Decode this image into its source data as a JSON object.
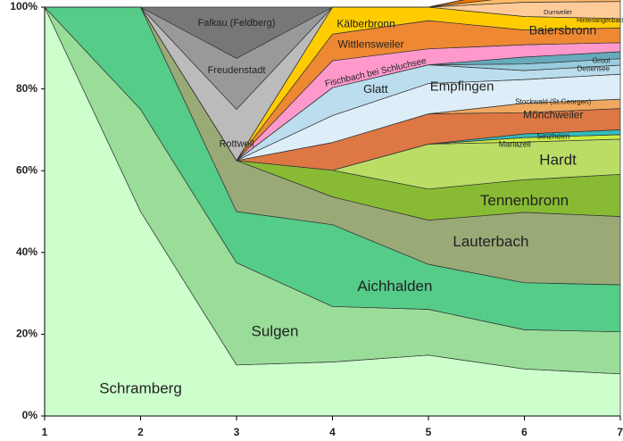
{
  "chart_data": {
    "type": "area",
    "stacked": true,
    "percent": true,
    "x": [
      1,
      2,
      3,
      4,
      5,
      6,
      7
    ],
    "ylim": [
      0,
      100
    ],
    "yticks": [
      "0%",
      "20%",
      "40%",
      "60%",
      "80%",
      "100%"
    ],
    "xticks": [
      "1",
      "2",
      "3",
      "4",
      "5",
      "6",
      "7"
    ],
    "grid": false,
    "legend": "none",
    "series": [
      {
        "name": "Schramberg",
        "color": "#ccffcc",
        "values": [
          100,
          50,
          12.5,
          13.2,
          14.9,
          11.5,
          10.3
        ]
      },
      {
        "name": "Sulgen",
        "color": "#99dd99",
        "values": [
          0,
          25,
          25,
          13.6,
          11.2,
          9.6,
          10.3
        ]
      },
      {
        "name": "Aichhalden",
        "color": "#55cc88",
        "values": [
          0,
          25,
          12.5,
          20.0,
          11.0,
          11.5,
          11.5
        ]
      },
      {
        "name": "Lauterbach",
        "color": "#99aa77",
        "values": [
          0,
          0,
          12.5,
          6.8,
          10.8,
          17.2,
          16.7
        ]
      },
      {
        "name": "Tennenbronn",
        "color": "#88bb33",
        "values": [
          0,
          0,
          0,
          6.5,
          7.6,
          8.0,
          10.3
        ]
      },
      {
        "name": "Hardt",
        "color": "#bbdd66",
        "values": [
          0,
          0,
          0,
          0,
          11.0,
          9.2,
          8.6
        ]
      },
      {
        "name": "Mariazell",
        "color": "#ccee44",
        "values": [
          0,
          0,
          0,
          0,
          0,
          1.1,
          1.1
        ]
      },
      {
        "name": "Sinzheim",
        "color": "#33bbbb",
        "values": [
          0,
          0,
          0,
          0,
          0,
          0.9,
          1.2
        ]
      },
      {
        "name": "Mönchweiler",
        "color": "#dd7744",
        "values": [
          0,
          0,
          0,
          6.8,
          7.4,
          5.2,
          5.2
        ]
      },
      {
        "name": "Stockwald (St.Georgen)",
        "color": "#f0a860",
        "values": [
          0,
          0,
          0,
          0,
          0,
          2.3,
          2.3
        ]
      },
      {
        "name": "Empfingen",
        "color": "#ddeef8",
        "values": [
          0,
          0,
          0,
          6.6,
          7.4,
          5.8,
          6.1
        ]
      },
      {
        "name": "Glatt",
        "color": "#bbddee",
        "values": [
          0,
          0,
          0,
          6.8,
          4.6,
          2.2,
          2.2
        ]
      },
      {
        "name": "Dettensee",
        "color": "#99ccdd",
        "values": [
          0,
          0,
          0,
          0,
          0,
          1.6,
          1.6
        ]
      },
      {
        "name": "Gruol",
        "color": "#66aabb",
        "values": [
          0,
          0,
          0,
          0,
          0,
          1.7,
          1.7
        ]
      },
      {
        "name": "Fischbach bei Schluchsee",
        "color": "#ff99cc",
        "values": [
          0,
          0,
          0,
          6.6,
          3.9,
          3.0,
          2.2
        ]
      },
      {
        "name": "Wittlensweiler",
        "color": "#ee8833",
        "values": [
          0,
          0,
          0,
          6.5,
          6.9,
          3.6,
          3.6
        ]
      },
      {
        "name": "Kälberbronn",
        "color": "#ffcc00",
        "values": [
          0,
          0,
          0,
          6.6,
          3.3,
          3.3,
          2.3
        ]
      },
      {
        "name": "Baiersbronn",
        "color": "#ffcc99",
        "values": [
          0,
          0,
          0,
          0,
          0,
          3.5,
          4.2
        ]
      },
      {
        "name": "Hinterlangenbach",
        "color": "#ffbb66",
        "values": [
          0,
          0,
          0,
          0,
          0,
          1.5,
          1.5
        ]
      },
      {
        "name": "Durrweiler",
        "color": "#ee7700",
        "values": [
          0,
          0,
          0,
          0,
          0,
          2.2,
          2.3
        ]
      },
      {
        "name": "Rottweil",
        "color": "#bbbbbb",
        "values": [
          0,
          0,
          12.5,
          0,
          0,
          0,
          0
        ]
      },
      {
        "name": "Freudenstadt",
        "color": "#999999",
        "values": [
          0,
          0,
          12.5,
          0,
          0,
          0,
          0
        ]
      },
      {
        "name": "Falkau (Feldberg)",
        "color": "#777777",
        "values": [
          0,
          0,
          12.5,
          0,
          0,
          0,
          0
        ]
      }
    ],
    "labels": [
      {
        "text": "Schramberg",
        "x": 2.0,
        "y": 6.5,
        "size": 17
      },
      {
        "text": "Sulgen",
        "x": 3.4,
        "y": 20.5,
        "size": 17
      },
      {
        "text": "Aichhalden",
        "x": 4.65,
        "y": 31.5,
        "size": 17
      },
      {
        "text": "Lauterbach",
        "x": 5.65,
        "y": 42.5,
        "size": 17
      },
      {
        "text": "Tennenbronn",
        "x": 6.0,
        "y": 52.5,
        "size": 17
      },
      {
        "text": "Hardt",
        "x": 6.35,
        "y": 62.5,
        "size": 17
      },
      {
        "text": "Mariazell",
        "x": 5.9,
        "y": 66.3,
        "size": 9
      },
      {
        "text": "Sinzheim",
        "x": 6.3,
        "y": 68.3,
        "size": 9
      },
      {
        "text": "Mönchweiler",
        "x": 6.3,
        "y": 73.5,
        "size": 12
      },
      {
        "text": "Stockwald (St.Georgen)",
        "x": 6.3,
        "y": 76.8,
        "size": 8
      },
      {
        "text": "Empfingen",
        "x": 5.35,
        "y": 80.5,
        "size": 15
      },
      {
        "text": "Glatt",
        "x": 4.45,
        "y": 79.8,
        "size": 13
      },
      {
        "text": "Dettensee",
        "x": 6.72,
        "y": 84.8,
        "size": 8
      },
      {
        "text": "Gruol",
        "x": 6.8,
        "y": 86.8,
        "size": 8
      },
      {
        "text": "Fischbach bei Schluchsee",
        "x": 4.45,
        "y": 84.0,
        "size": 10,
        "rotate": -13
      },
      {
        "text": "Wittlensweiler",
        "x": 4.4,
        "y": 90.8,
        "size": 12
      },
      {
        "text": "Kälberbronn",
        "x": 4.35,
        "y": 95.8,
        "size": 12
      },
      {
        "text": "Baiersbronn",
        "x": 6.4,
        "y": 94.2,
        "size": 14
      },
      {
        "text": "Hinterlangenbach",
        "x": 6.8,
        "y": 96.7,
        "size": 7
      },
      {
        "text": "Durrweiler",
        "x": 6.35,
        "y": 98.7,
        "size": 7
      },
      {
        "text": "Rottweil",
        "x": 3.0,
        "y": 66.5,
        "size": 11
      },
      {
        "text": "Freudenstadt",
        "x": 3.0,
        "y": 84.5,
        "size": 11
      },
      {
        "text": "Falkau (Feldberg)",
        "x": 3.0,
        "y": 96.0,
        "size": 11
      }
    ]
  }
}
